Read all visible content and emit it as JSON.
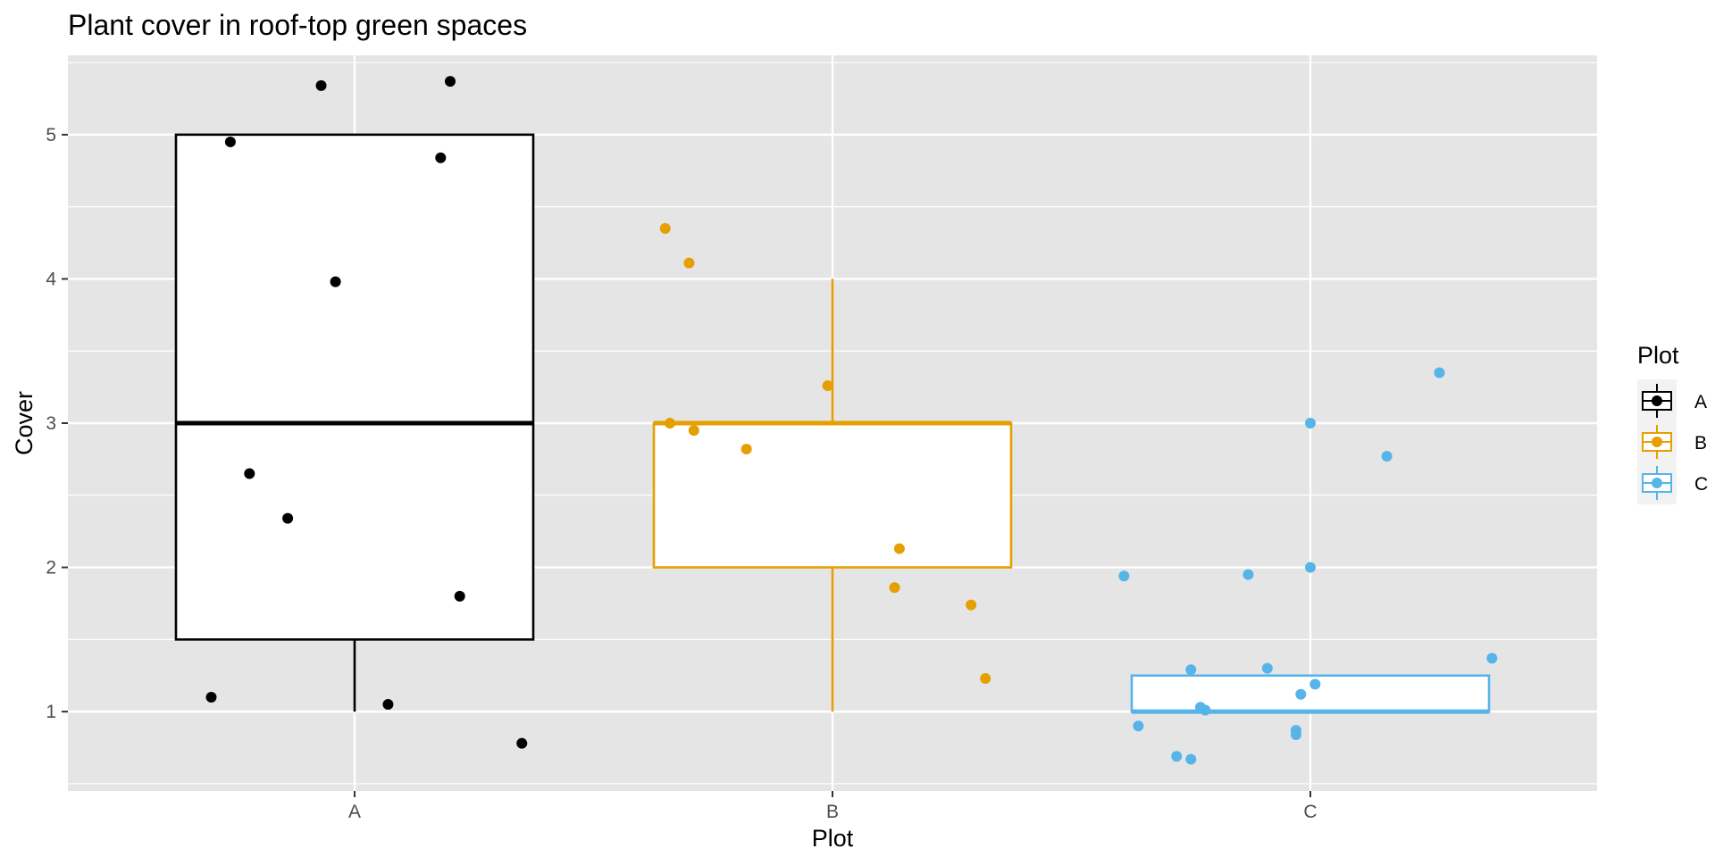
{
  "chart_data": {
    "type": "boxplot",
    "title": "Plant cover in roof-top green spaces",
    "xlabel": "Plot",
    "ylabel": "Cover",
    "ylim": [
      0.45,
      5.55
    ],
    "yticks": [
      1,
      2,
      3,
      4,
      5
    ],
    "categories": [
      "A",
      "B",
      "C"
    ],
    "grid": true,
    "legend": {
      "title": "Plot",
      "placement": "right"
    },
    "series": [
      {
        "name": "A",
        "color": "#000000",
        "box": {
          "whisker_low": 1,
          "q1": 1.5,
          "median": 3,
          "q3": 5,
          "whisker_high": 5
        },
        "points": [
          {
            "x": -0.3,
            "y": 1.1
          },
          {
            "x": -0.26,
            "y": 4.95
          },
          {
            "x": -0.22,
            "y": 2.65
          },
          {
            "x": -0.14,
            "y": 2.34
          },
          {
            "x": -0.07,
            "y": 5.34
          },
          {
            "x": -0.04,
            "y": 3.98
          },
          {
            "x": 0.07,
            "y": 1.05
          },
          {
            "x": 0.18,
            "y": 4.84
          },
          {
            "x": 0.2,
            "y": 5.37
          },
          {
            "x": 0.22,
            "y": 1.8
          },
          {
            "x": 0.35,
            "y": 0.78
          }
        ]
      },
      {
        "name": "B",
        "color": "#E69F00",
        "box": {
          "whisker_low": 1,
          "q1": 2,
          "median": 3,
          "q3": 3,
          "whisker_high": 4
        },
        "points": [
          {
            "x": -0.35,
            "y": 4.35
          },
          {
            "x": -0.34,
            "y": 3.0
          },
          {
            "x": -0.3,
            "y": 4.11
          },
          {
            "x": -0.29,
            "y": 2.95
          },
          {
            "x": -0.18,
            "y": 2.82
          },
          {
            "x": -0.01,
            "y": 3.26
          },
          {
            "x": 0.13,
            "y": 1.86
          },
          {
            "x": 0.14,
            "y": 2.13
          },
          {
            "x": 0.29,
            "y": 1.74
          },
          {
            "x": 0.32,
            "y": 1.23
          }
        ]
      },
      {
        "name": "C",
        "color": "#56B4E9",
        "box": {
          "whisker_low": 1,
          "q1": 1,
          "median": 1,
          "q3": 1.25,
          "whisker_high": 1.25
        },
        "points": [
          {
            "x": -0.39,
            "y": 1.94
          },
          {
            "x": -0.36,
            "y": 0.9
          },
          {
            "x": -0.28,
            "y": 0.69
          },
          {
            "x": -0.25,
            "y": 0.67
          },
          {
            "x": -0.25,
            "y": 1.29
          },
          {
            "x": -0.23,
            "y": 1.03
          },
          {
            "x": -0.22,
            "y": 1.01
          },
          {
            "x": -0.13,
            "y": 1.95
          },
          {
            "x": -0.09,
            "y": 1.3
          },
          {
            "x": -0.03,
            "y": 0.87
          },
          {
            "x": -0.03,
            "y": 0.84
          },
          {
            "x": -0.02,
            "y": 1.12
          },
          {
            "x": 0.0,
            "y": 3.0
          },
          {
            "x": 0.0,
            "y": 2.0
          },
          {
            "x": 0.01,
            "y": 1.19
          },
          {
            "x": 0.16,
            "y": 2.77
          },
          {
            "x": 0.27,
            "y": 3.35
          },
          {
            "x": 0.38,
            "y": 1.37
          }
        ]
      }
    ]
  }
}
